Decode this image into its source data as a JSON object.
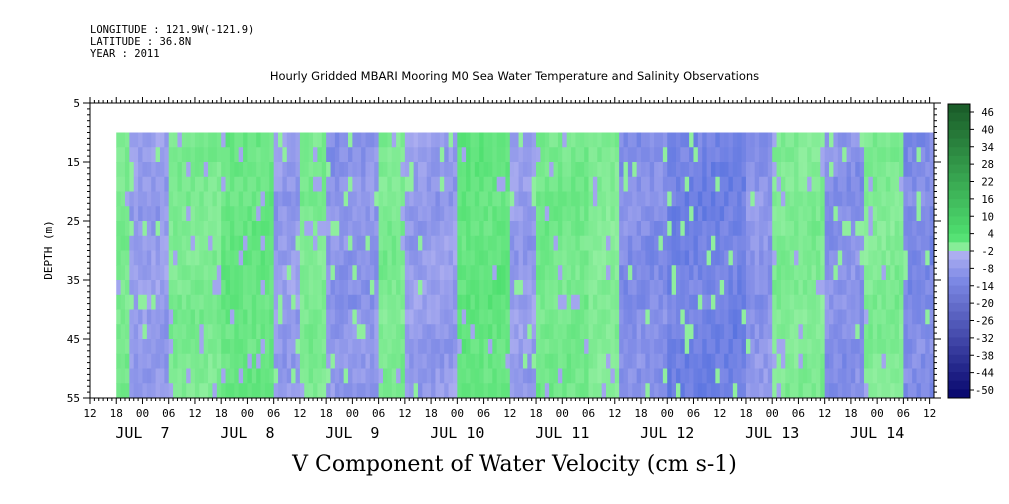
{
  "header": {
    "longitude": "LONGITUDE : 121.9W(-121.9)",
    "latitude": "LATITUDE : 36.8N",
    "year": "YEAR : 2011"
  },
  "chart_data": {
    "type": "heatmap",
    "title": "Hourly Gridded MBARI Mooring M0 Sea Water Temperature and Salinity Observations",
    "xlabel": "V Component of Water Velocity (cm s-1)",
    "ylabel": "DEPTH (m)",
    "ylim": [
      5,
      55
    ],
    "y_reversed": true,
    "y_ticks": [
      5,
      15,
      25,
      35,
      45,
      55
    ],
    "x_hour_ticks": [
      "12",
      "18",
      "00",
      "06",
      "12",
      "18",
      "00",
      "06",
      "12",
      "18",
      "00",
      "06",
      "12",
      "18",
      "00",
      "06",
      "12",
      "18",
      "00",
      "06",
      "12",
      "18",
      "00",
      "06",
      "12",
      "18",
      "00",
      "06",
      "12",
      "18",
      "00",
      "06",
      "12"
    ],
    "x_day_labels": [
      "JUL  7",
      "JUL  8",
      "JUL  9",
      "JUL 10",
      "JUL 11",
      "JUL 12",
      "JUL 13",
      "JUL 14"
    ],
    "data_depth_range": [
      10,
      55
    ],
    "data_start": "JUL 7 18",
    "colorbar_levels": [
      "46",
      "40",
      "34",
      "28",
      "22",
      "16",
      "10",
      "4",
      "-2",
      "-8",
      "-14",
      "-20",
      "-26",
      "-32",
      "-38",
      "-44",
      "-50"
    ],
    "colors": {
      "positive_light": "#9ff2aa",
      "positive_mid": "#4fe070",
      "negative_light": "#b4b4f2",
      "negative_mid": "#7e8ae6",
      "negative_deep": "#5a74e0"
    },
    "bands": [
      {
        "start_hour": 18,
        "end_hour": 21,
        "sign": "positive",
        "intensity": 0.5
      },
      {
        "start_hour": 21,
        "end_hour": 30,
        "sign": "negative",
        "intensity": 0.35
      },
      {
        "start_hour": 30,
        "end_hour": 42,
        "sign": "positive",
        "intensity": 0.45
      },
      {
        "start_hour": 42,
        "end_hour": 54,
        "sign": "positive",
        "intensity": 0.7
      },
      {
        "start_hour": 54,
        "end_hour": 60,
        "sign": "negative",
        "intensity": 0.35
      },
      {
        "start_hour": 60,
        "end_hour": 66,
        "sign": "positive",
        "intensity": 0.45
      },
      {
        "start_hour": 66,
        "end_hour": 78,
        "sign": "negative",
        "intensity": 0.45
      },
      {
        "start_hour": 78,
        "end_hour": 84,
        "sign": "positive",
        "intensity": 0.45
      },
      {
        "start_hour": 84,
        "end_hour": 96,
        "sign": "negative",
        "intensity": 0.35
      },
      {
        "start_hour": 96,
        "end_hour": 108,
        "sign": "positive",
        "intensity": 0.75
      },
      {
        "start_hour": 108,
        "end_hour": 114,
        "sign": "negative",
        "intensity": 0.35
      },
      {
        "start_hour": 114,
        "end_hour": 126,
        "sign": "positive",
        "intensity": 0.55
      },
      {
        "start_hour": 126,
        "end_hour": 133,
        "sign": "positive",
        "intensity": 0.35
      },
      {
        "start_hour": 133,
        "end_hour": 144,
        "sign": "negative",
        "intensity": 0.55
      },
      {
        "start_hour": 144,
        "end_hour": 162,
        "sign": "negative",
        "intensity": 0.75
      },
      {
        "start_hour": 162,
        "end_hour": 168,
        "sign": "negative",
        "intensity": 0.45
      },
      {
        "start_hour": 168,
        "end_hour": 180,
        "sign": "positive",
        "intensity": 0.4
      },
      {
        "start_hour": 180,
        "end_hour": 189,
        "sign": "negative",
        "intensity": 0.5
      },
      {
        "start_hour": 189,
        "end_hour": 198,
        "sign": "positive",
        "intensity": 0.4
      },
      {
        "start_hour": 198,
        "end_hour": 207,
        "sign": "negative",
        "intensity": 0.6
      },
      {
        "start_hour": 207,
        "end_hour": 210,
        "sign": "positive",
        "intensity": 0.4
      }
    ]
  }
}
